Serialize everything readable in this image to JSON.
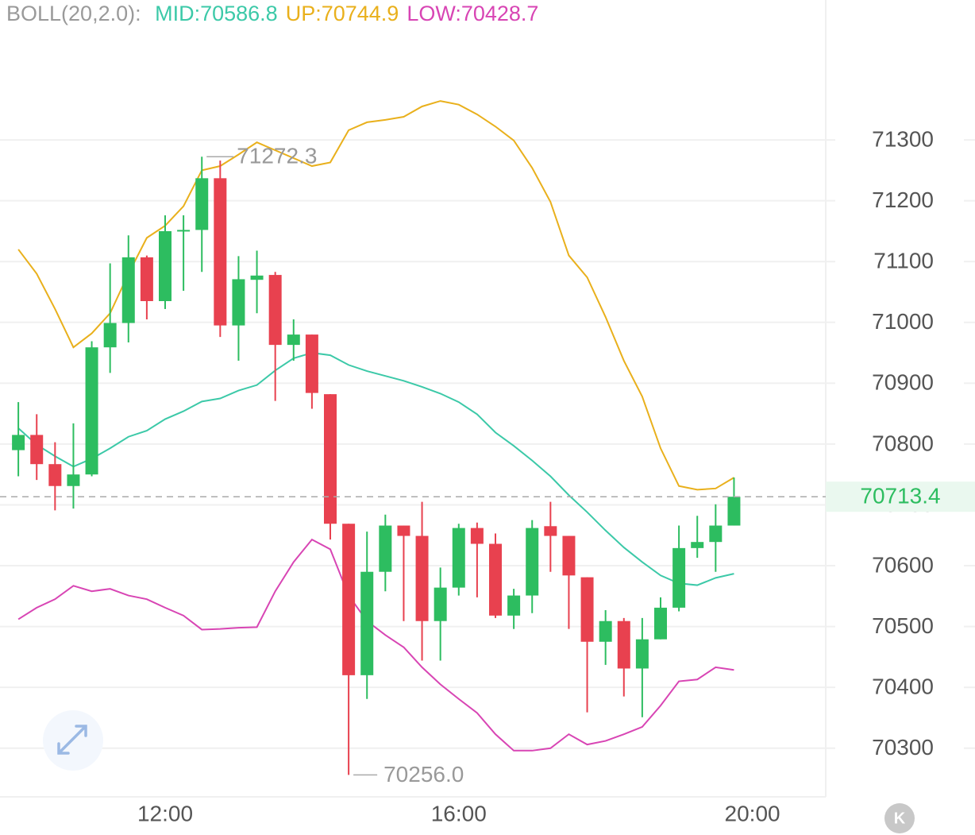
{
  "chart_data": {
    "type": "candlestick",
    "indicator": "BOLL(20,2.0):",
    "up_color": "#2dbd60",
    "down_color": "#e8414f",
    "xlim": [
      9.75,
      21.0
    ],
    "ylim": [
      70220,
      71530
    ],
    "xticks": [
      {
        "value": 12,
        "label": "12:00"
      },
      {
        "value": 16,
        "label": "16:00"
      },
      {
        "value": 20,
        "label": "20:00"
      }
    ],
    "yticks": [
      70300,
      70400,
      70500,
      70600,
      70700,
      70800,
      70900,
      71000,
      71100,
      71200,
      71300
    ],
    "grid": true,
    "low_label": "70256.0",
    "x": [
      10,
      10.25,
      10.5,
      10.75,
      11,
      11.25,
      11.5,
      11.75,
      12,
      12.25,
      12.5,
      12.75,
      13,
      13.25,
      13.5,
      13.75,
      14,
      14.25,
      14.5,
      14.75,
      15,
      15.25,
      15.5,
      15.75,
      16,
      16.25,
      16.5,
      16.75,
      17,
      17.25,
      17.5,
      17.75,
      18,
      18.25,
      18.5,
      18.75,
      19,
      19.25,
      19.5,
      19.75
    ],
    "open": [
      70790,
      70815,
      70767,
      70731,
      70750,
      70959,
      70999,
      71107,
      71035,
      71150,
      71152,
      71237,
      70995,
      71070,
      71078,
      70963,
      70980,
      70882,
      70669,
      70420,
      70590,
      70666,
      70649,
      70509,
      70564,
      70662,
      70636,
      70518,
      70551,
      70665,
      70649,
      70581,
      70475,
      70509,
      70431,
      70479,
      70531,
      70629,
      70639,
      70666
    ],
    "high": [
      70869,
      70849,
      70803,
      70834,
      70969,
      71097,
      71143,
      71110,
      71176,
      71176,
      71272.3,
      71266,
      71109,
      71118,
      71083,
      71005,
      70980,
      70882,
      70669,
      70656,
      70684,
      70666,
      70705,
      70597,
      70669,
      70671,
      70653,
      70562,
      70675,
      70705,
      70649,
      70581,
      70527,
      70514,
      70514,
      70548,
      70666,
      70682,
      70701,
      70745
    ],
    "low": [
      70747,
      70741,
      70691,
      70694,
      70747,
      70917,
      70967,
      71005,
      71022,
      71052,
      71083,
      70976,
      70937,
      71015,
      70871,
      70937,
      70858,
      70643,
      70256,
      70381,
      70558,
      70509,
      70444,
      70444,
      70551,
      70548,
      70514,
      70496,
      70522,
      70590,
      70496,
      70359,
      70437,
      70385,
      70351,
      70479,
      70525,
      70613,
      70590,
      70666
    ],
    "close": [
      70815,
      70767,
      70731,
      70750,
      70959,
      70999,
      71107,
      71035,
      71150,
      71152,
      71237,
      70995,
      71071,
      71077,
      70963,
      70980,
      70884,
      70669,
      70420,
      70590,
      70666,
      70649,
      70509,
      70564,
      70662,
      70636,
      70518,
      70551,
      70662,
      70649,
      70584,
      70475,
      70509,
      70431,
      70479,
      70531,
      70629,
      70639,
      70666,
      70713.4
    ],
    "series": [
      {
        "label": "MID:70586.8",
        "color": "#3cc9a8",
        "values": [
          70826,
          70799,
          70780,
          70763,
          70776,
          70793,
          70812,
          70822,
          70841,
          70854,
          70870,
          70875,
          70888,
          70897,
          70921,
          70941,
          70950,
          70946,
          70930,
          70920,
          70912,
          70904,
          70894,
          70883,
          70869,
          70849,
          70819,
          70797,
          70773,
          70747,
          70716,
          70688,
          70658,
          70630,
          70606,
          70584,
          70571,
          70568,
          70580,
          70586.8
        ]
      },
      {
        "label": "UP:70744.9",
        "color": "#e9b01c",
        "values": [
          71120,
          71080,
          71022,
          70959,
          70982,
          71015,
          71080,
          71139,
          71159,
          71191,
          71250,
          71257,
          71276,
          71296,
          71283,
          71270,
          71257,
          71263,
          71316,
          71329,
          71333,
          71338,
          71355,
          71364,
          71358,
          71342,
          71322,
          71299,
          71254,
          71198,
          71110,
          71074,
          71009,
          70937,
          70878,
          70793,
          70731,
          70725,
          70727,
          70744.9
        ]
      },
      {
        "label": "LOW:70428.7",
        "color": "#d845b4",
        "values": [
          70512,
          70531,
          70545,
          70567,
          70558,
          70562,
          70551,
          70545,
          70531,
          70518,
          70495,
          70496,
          70498,
          70499,
          70558,
          70606,
          70643,
          70627,
          70551,
          70509,
          70486,
          70466,
          70433,
          70405,
          70381,
          70358,
          70323,
          70296,
          70296,
          70300,
          70323,
          70306,
          70312,
          70323,
          70335,
          70370,
          70410,
          70413,
          70433,
          70428.7
        ]
      }
    ]
  },
  "controls": {
    "kline_button": "K"
  }
}
